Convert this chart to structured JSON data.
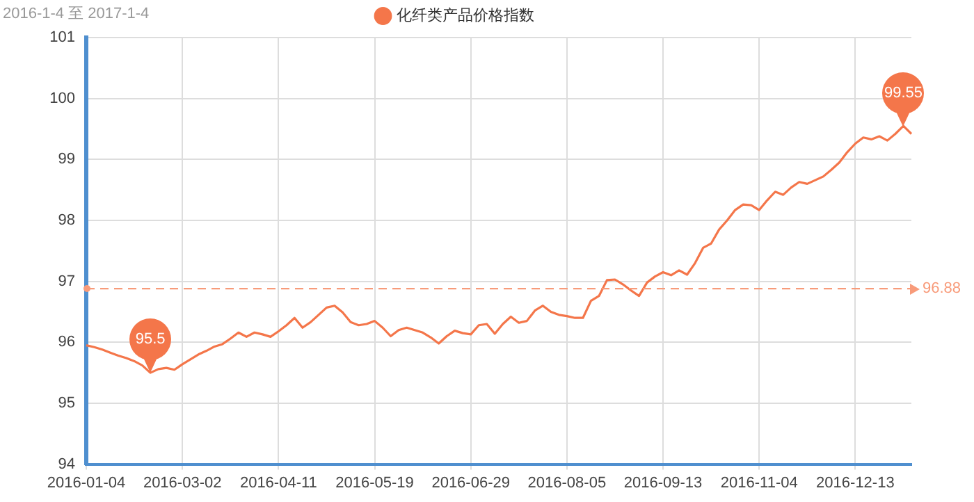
{
  "chart_data": {
    "type": "line",
    "title": "2016-1-4 至 2017-1-4",
    "categories": [
      "2016-01-04",
      null,
      null,
      null,
      null,
      null,
      null,
      null,
      null,
      null,
      null,
      null,
      "2016-03-02",
      null,
      null,
      null,
      null,
      null,
      null,
      null,
      null,
      null,
      null,
      null,
      "2016-04-11",
      null,
      null,
      null,
      null,
      null,
      null,
      null,
      null,
      null,
      null,
      null,
      "2016-05-19",
      null,
      null,
      null,
      null,
      null,
      null,
      null,
      null,
      null,
      null,
      null,
      "2016-06-29",
      null,
      null,
      null,
      null,
      null,
      null,
      null,
      null,
      null,
      null,
      null,
      "2016-08-05",
      null,
      null,
      null,
      null,
      null,
      null,
      null,
      null,
      null,
      null,
      null,
      "2016-09-13",
      null,
      null,
      null,
      null,
      null,
      null,
      null,
      null,
      null,
      null,
      null,
      "2016-11-04",
      null,
      null,
      null,
      null,
      null,
      null,
      null,
      null,
      null,
      null,
      null,
      "2016-12-13",
      null,
      null,
      null,
      null,
      null,
      null,
      null
    ],
    "series": [
      {
        "name": "化纤类产品价格指数",
        "color": "#f4764a",
        "values": [
          95.95,
          95.92,
          95.88,
          95.83,
          95.78,
          95.74,
          95.69,
          95.62,
          95.5,
          95.56,
          95.58,
          95.55,
          95.64,
          95.72,
          95.8,
          95.86,
          95.93,
          95.97,
          96.06,
          96.16,
          96.09,
          96.16,
          96.13,
          96.09,
          96.18,
          96.28,
          96.4,
          96.24,
          96.33,
          96.45,
          96.57,
          96.6,
          96.49,
          96.33,
          96.28,
          96.3,
          96.35,
          96.24,
          96.1,
          96.2,
          96.24,
          96.2,
          96.16,
          96.08,
          95.98,
          96.1,
          96.19,
          96.15,
          96.13,
          96.28,
          96.3,
          96.14,
          96.3,
          96.42,
          96.32,
          96.35,
          96.52,
          96.6,
          96.5,
          96.45,
          96.43,
          96.4,
          96.4,
          96.68,
          96.76,
          97.02,
          97.03,
          96.95,
          96.85,
          96.76,
          96.98,
          97.08,
          97.15,
          97.1,
          97.18,
          97.11,
          97.3,
          97.55,
          97.62,
          97.85,
          98.0,
          98.17,
          98.26,
          98.25,
          98.17,
          98.33,
          98.47,
          98.42,
          98.54,
          98.63,
          98.6,
          98.66,
          98.72,
          98.83,
          98.95,
          99.12,
          99.26,
          99.36,
          99.33,
          99.38,
          99.31,
          99.42,
          99.55,
          99.42
        ]
      }
    ],
    "ylim": [
      94,
      101
    ],
    "yticks": [
      94,
      95,
      96,
      97,
      98,
      99,
      100,
      101
    ],
    "grid": true,
    "legend": "top",
    "marker": "none",
    "line_style": "solid",
    "ref_lines": [
      {
        "axis": "y",
        "value": 96.88,
        "label": "96.88",
        "color": "#f89b7a",
        "line_style": "dashed"
      }
    ],
    "annotations": [
      {
        "text": "95.5",
        "y": 95.5
      },
      {
        "text": "99.55",
        "y": 99.55
      }
    ]
  }
}
